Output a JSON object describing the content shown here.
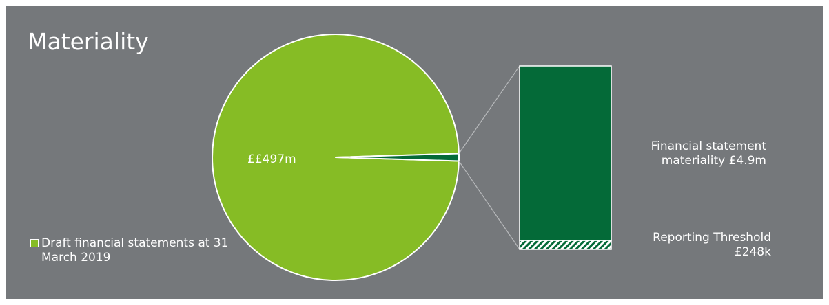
{
  "title": "Materiality",
  "chart_data": [
    {
      "type": "pie",
      "slices": [
        {
          "name": "Draft financial statements at 31 March 2019",
          "value": 497,
          "color": "#86bc25",
          "label": "££497m"
        },
        {
          "name": "Financial statement materiality",
          "value": 4.9,
          "color": "#046a38"
        }
      ],
      "legend": {
        "position": "bottom-left",
        "label": "Draft financial statements at 31 March 2019"
      }
    },
    {
      "type": "bar",
      "stacked": true,
      "segments": [
        {
          "name": "Financial statement materiality",
          "value": 4.9,
          "unit": "m",
          "color": "#046a38",
          "label": "Financial statement materiality £4.9m"
        },
        {
          "name": "Reporting Threshold",
          "value": 0.248,
          "unit": "m",
          "color": "#86bc25",
          "pattern": "hatched",
          "label": "Reporting Threshold £248k"
        }
      ]
    }
  ]
}
